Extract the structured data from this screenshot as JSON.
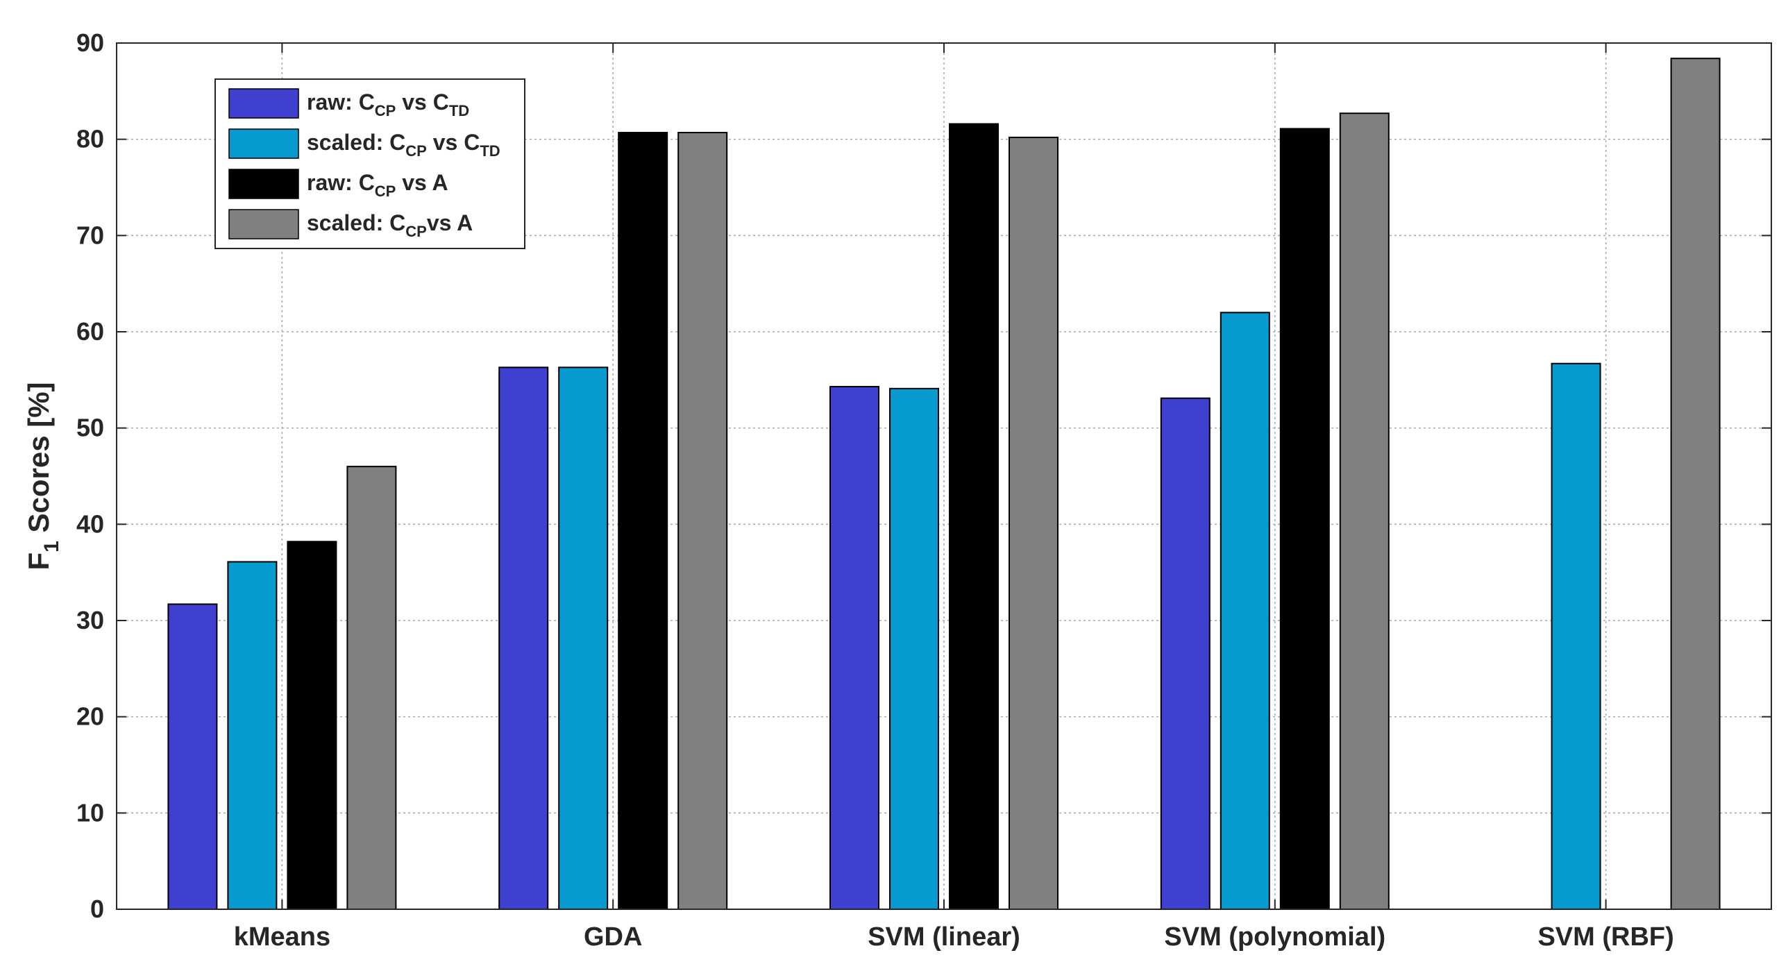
{
  "chart_data": {
    "type": "bar",
    "title": "",
    "xlabel": "",
    "ylabel": {
      "main": "F",
      "sub": "1",
      "rest": " Scores [%]"
    },
    "ylim": [
      0,
      90
    ],
    "yticks": [
      0,
      10,
      20,
      30,
      40,
      50,
      60,
      70,
      80,
      90
    ],
    "grid": true,
    "legend_position": "top-left",
    "categories": [
      "kMeans",
      "GDA",
      "SVM (linear)",
      "SVM (polynomial)",
      "SVM (RBF)"
    ],
    "series": [
      {
        "name": "raw: C_CP vs C_TD",
        "label_parts": [
          [
            "raw: C",
            false
          ],
          [
            "CP",
            true
          ],
          [
            " vs C",
            false
          ],
          [
            "TD",
            true
          ]
        ],
        "color": "#4040d0",
        "values": [
          31.7,
          56.3,
          54.3,
          53.1,
          0
        ]
      },
      {
        "name": "scaled: C_CP vs C_TD",
        "label_parts": [
          [
            "scaled: C",
            false
          ],
          [
            "CP",
            true
          ],
          [
            " vs C",
            false
          ],
          [
            "TD",
            true
          ]
        ],
        "color": "#069acf",
        "values": [
          36.1,
          56.3,
          54.1,
          62.0,
          56.7
        ]
      },
      {
        "name": "raw: C_CP vs A",
        "label_parts": [
          [
            "raw: C",
            false
          ],
          [
            "CP",
            true
          ],
          [
            " vs A",
            false
          ]
        ],
        "color": "#000000",
        "values": [
          38.2,
          80.7,
          81.6,
          81.1,
          0
        ]
      },
      {
        "name": "scaled: C_CPvs A",
        "label_parts": [
          [
            "scaled: C",
            false
          ],
          [
            "CP",
            true
          ],
          [
            "vs A",
            false
          ]
        ],
        "color": "#808080",
        "values": [
          46.0,
          80.7,
          80.2,
          82.7,
          88.4
        ]
      }
    ]
  }
}
